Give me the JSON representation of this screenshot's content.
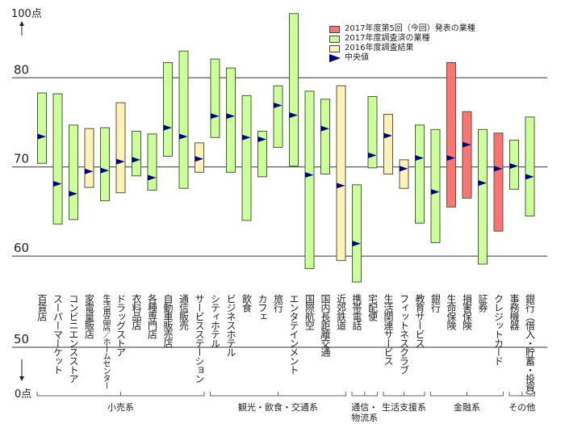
{
  "chart_data": {
    "type": "floating-bar",
    "yaxis": {
      "top_label": "100点",
      "bottom_label": "0点",
      "ticks": [
        50,
        60,
        70,
        80
      ],
      "range": [
        50,
        90
      ],
      "broken_axis": true
    },
    "grid": true,
    "legend": {
      "placement": "top-right",
      "items": [
        {
          "label": "2017年度第5回（今回）発表の業種",
          "color": "#ff7373"
        },
        {
          "label": "2017年度調査済の業種",
          "color": "#ccff99"
        },
        {
          "label": "2016年度調査結果",
          "color": "#fff2b8"
        },
        {
          "label": "中央値",
          "color": "#000080"
        }
      ]
    },
    "categories": [
      {
        "name": "百貨店",
        "type": "green",
        "max": 78.3,
        "min": 70.4,
        "median": 73.4
      },
      {
        "name": "スーパーマーケット",
        "type": "green",
        "max": 78.2,
        "min": 63.6,
        "median": 68.1
      },
      {
        "name": "コンビニエンスストア",
        "type": "green",
        "max": 74.7,
        "min": 64.1,
        "median": 67.0
      },
      {
        "name": "家電量販店",
        "type": "yellow",
        "max": 74.3,
        "min": 67.7,
        "median": 69.5
      },
      {
        "name": "生活用品店／ホームセンター",
        "type": "green",
        "max": 74.4,
        "min": 66.2,
        "median": 69.6,
        "small": true
      },
      {
        "name": "ドラッグストア",
        "type": "yellow",
        "max": 77.2,
        "min": 67.1,
        "median": 70.6
      },
      {
        "name": "衣料品店",
        "type": "green",
        "max": 74.0,
        "min": 69.0,
        "median": 70.8
      },
      {
        "name": "各種専門店",
        "type": "green",
        "max": 73.7,
        "min": 67.4,
        "median": 68.8
      },
      {
        "name": "自動車販売店",
        "type": "green",
        "max": 81.7,
        "min": 71.2,
        "median": 74.4
      },
      {
        "name": "通信販売",
        "type": "green",
        "max": 83.0,
        "min": 67.6,
        "median": 73.4
      },
      {
        "name": "サービスステーション",
        "type": "yellow",
        "max": 72.7,
        "min": 69.4,
        "median": 70.9
      },
      {
        "name": "シティホテル",
        "type": "green",
        "max": 82.1,
        "min": 73.3,
        "median": 75.7
      },
      {
        "name": "ビジネスホテル",
        "type": "green",
        "max": 81.1,
        "min": 69.4,
        "median": 75.7
      },
      {
        "name": "飲食",
        "type": "green",
        "max": 78.0,
        "min": 64.0,
        "median": 73.3
      },
      {
        "name": "カフェ",
        "type": "green",
        "max": 74.0,
        "min": 68.9,
        "median": 73.1
      },
      {
        "name": "旅行",
        "type": "green",
        "max": 79.1,
        "min": 72.2,
        "median": 76.9
      },
      {
        "name": "エンタテインメント",
        "type": "green",
        "max": 87.2,
        "min": 70.1,
        "median": 75.8
      },
      {
        "name": "国際航空",
        "type": "green",
        "max": 78.5,
        "min": 58.6,
        "median": 69.1
      },
      {
        "name": "国内長距離交通",
        "type": "green",
        "max": 77.6,
        "min": 69.2,
        "median": 74.3
      },
      {
        "name": "近郊鉄道",
        "type": "yellow",
        "max": 79.1,
        "min": 59.5,
        "median": 67.9
      },
      {
        "name": "携帯電話",
        "type": "green",
        "max": 68.0,
        "min": 57.1,
        "median": 61.4
      },
      {
        "name": "宅配便",
        "type": "green",
        "max": 77.9,
        "min": 69.9,
        "median": 71.3
      },
      {
        "name": "生活関連サービス",
        "type": "yellow",
        "max": 75.9,
        "min": 69.2,
        "median": 73.5
      },
      {
        "name": "フィットネスクラブ",
        "type": "yellow",
        "max": 70.8,
        "min": 67.6,
        "median": 69.8
      },
      {
        "name": "教育サービス",
        "type": "green",
        "max": 74.7,
        "min": 63.7,
        "median": 71.0
      },
      {
        "name": "銀行",
        "type": "green",
        "max": 74.2,
        "min": 61.5,
        "median": 67.2
      },
      {
        "name": "生命保険",
        "type": "red",
        "max": 81.7,
        "min": 65.5,
        "median": 71.0
      },
      {
        "name": "損害保険",
        "type": "red",
        "max": 76.2,
        "min": 66.5,
        "median": 72.5
      },
      {
        "name": "証券",
        "type": "green",
        "max": 74.2,
        "min": 59.1,
        "median": 68.2
      },
      {
        "name": "クレジットカード",
        "type": "red",
        "max": 73.8,
        "min": 62.8,
        "median": 69.8
      },
      {
        "name": "事務機器",
        "type": "green",
        "max": 73.0,
        "min": 67.5,
        "median": 70.1
      },
      {
        "name": "銀行（借入・貯蓄・投資）",
        "type": "green",
        "max": 75.6,
        "min": 64.5,
        "median": 68.9
      }
    ],
    "groups": [
      {
        "label": "小売系",
        "count": 11
      },
      {
        "label": "観光・飲食・交通系",
        "count": 9
      },
      {
        "label": "通信・物流系",
        "count": 2
      },
      {
        "label": "生活支援系",
        "count": 3
      },
      {
        "label": "金融系",
        "count": 5
      },
      {
        "label": "その他",
        "count": 2
      }
    ]
  },
  "colors": {
    "red": "#ff7373",
    "green": "#ccff99",
    "yellow": "#fff2b8",
    "median": "#000080",
    "stroke": "#4a5a3a"
  }
}
